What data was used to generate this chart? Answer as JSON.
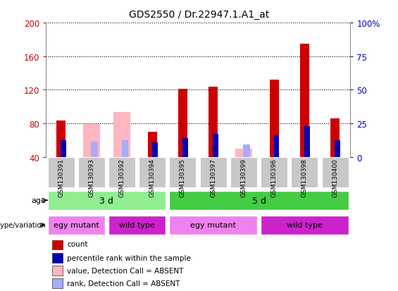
{
  "title": "GDS2550 / Dr.22947.1.A1_at",
  "samples": [
    "GSM130391",
    "GSM130393",
    "GSM130392",
    "GSM130394",
    "GSM130395",
    "GSM130397",
    "GSM130399",
    "GSM130396",
    "GSM130398",
    "GSM130400"
  ],
  "count_values": [
    83,
    0,
    0,
    70,
    121,
    124,
    0,
    132,
    175,
    86
  ],
  "percentile_values": [
    60,
    0,
    0,
    57,
    62,
    67,
    0,
    66,
    77,
    60
  ],
  "absent_value_values": [
    0,
    79,
    93,
    0,
    0,
    0,
    50,
    0,
    0,
    0
  ],
  "absent_rank_values": [
    0,
    58,
    60,
    0,
    0,
    0,
    55,
    0,
    0,
    0
  ],
  "ylim_left": [
    40,
    200
  ],
  "yticks_left": [
    40,
    80,
    120,
    160,
    200
  ],
  "ylim_right": [
    0,
    100
  ],
  "yticks_right": [
    0,
    25,
    50,
    75,
    100
  ],
  "age_groups": [
    {
      "label": "3 d",
      "start": 0,
      "end": 3,
      "color": "#90EE90"
    },
    {
      "label": "5 d",
      "start": 4,
      "end": 9,
      "color": "#44CC44"
    }
  ],
  "genotype_groups": [
    {
      "label": "egy mutant",
      "start": 0,
      "end": 1,
      "color": "#EE82EE"
    },
    {
      "label": "wild type",
      "start": 2,
      "end": 3,
      "color": "#CC22CC"
    },
    {
      "label": "egy mutant",
      "start": 4,
      "end": 6,
      "color": "#EE82EE"
    },
    {
      "label": "wild type",
      "start": 7,
      "end": 9,
      "color": "#CC22CC"
    }
  ],
  "count_color": "#CC0000",
  "percentile_color": "#0000BB",
  "absent_value_color": "#FFB6C1",
  "absent_rank_color": "#AAAAFF",
  "left_axis_color": "#CC0000",
  "right_axis_color": "#0000BB",
  "grid_color": "#000000",
  "tick_label_bg": "#C8C8C8"
}
